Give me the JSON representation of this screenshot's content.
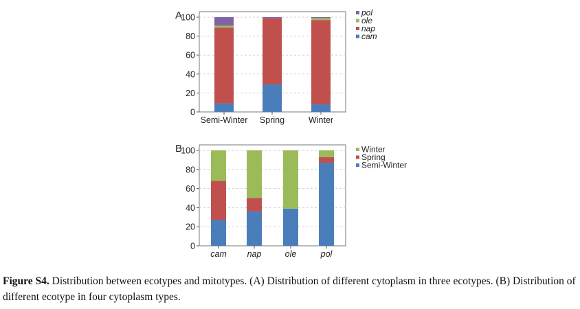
{
  "caption": {
    "label": "Figure S4.",
    "text": " Distribution between ecotypes and mitotypes. (A) Distribution of different cytoplasm in three ecotypes. (B) Distribution of different ecotype in four cytoplasm types."
  },
  "chart_data": [
    {
      "panel_label": "A",
      "type": "bar",
      "stacked": true,
      "categories": [
        "Semi-Winter",
        "Spring",
        "Winter"
      ],
      "series": [
        {
          "name": "cam",
          "color": "#4a7ebb",
          "values": [
            9,
            29,
            8
          ]
        },
        {
          "name": "nap",
          "color": "#c0504d",
          "values": [
            80,
            70,
            89
          ]
        },
        {
          "name": "ole",
          "color": "#9bbb59",
          "values": [
            2,
            0,
            2
          ]
        },
        {
          "name": "pol",
          "color": "#8064a2",
          "values": [
            9,
            1,
            1
          ]
        }
      ],
      "legend_order": [
        "pol",
        "ole",
        "nap",
        "cam"
      ],
      "legend_italic": true,
      "category_italic": false,
      "yticks": [
        0,
        20,
        40,
        60,
        80,
        100
      ],
      "ylim": [
        0,
        100
      ],
      "grid": true,
      "legend_position": "top-right"
    },
    {
      "panel_label": "B",
      "type": "bar",
      "stacked": true,
      "categories": [
        "cam",
        "nap",
        "ole",
        "pol"
      ],
      "series": [
        {
          "name": "Semi-Winter",
          "color": "#4a7ebb",
          "values": [
            27,
            36,
            39,
            87
          ]
        },
        {
          "name": "Spring",
          "color": "#c0504d",
          "values": [
            41,
            14,
            0,
            6
          ]
        },
        {
          "name": "Winter",
          "color": "#9bbb59",
          "values": [
            32,
            50,
            61,
            7
          ]
        }
      ],
      "legend_order": [
        "Winter",
        "Spring",
        "Semi-Winter"
      ],
      "legend_italic": false,
      "category_italic": true,
      "yticks": [
        0,
        20,
        40,
        60,
        80,
        100
      ],
      "ylim": [
        0,
        100
      ],
      "grid": true,
      "legend_position": "top-right"
    }
  ]
}
